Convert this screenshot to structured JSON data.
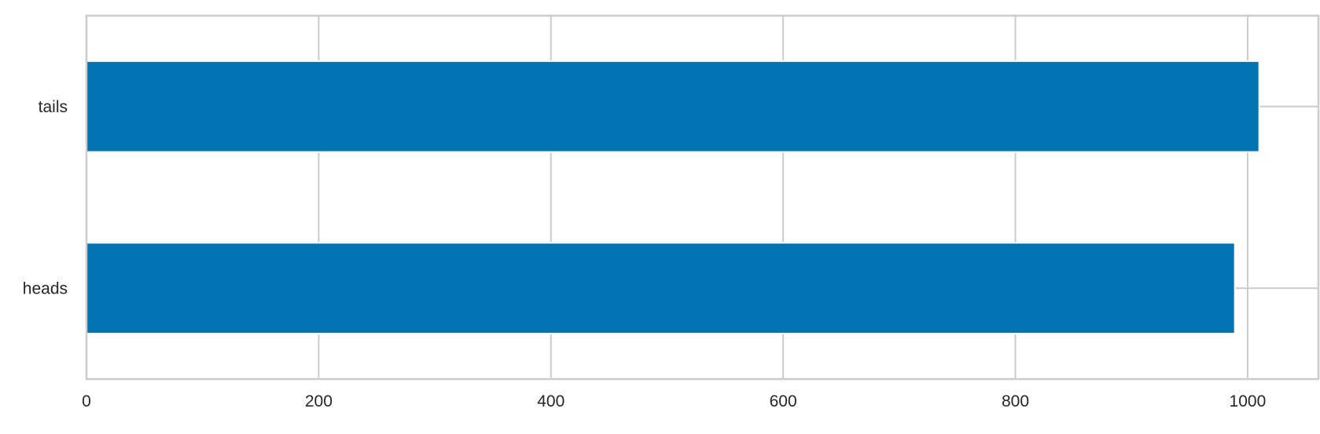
{
  "chart_data": {
    "type": "bar",
    "orientation": "horizontal",
    "categories": [
      "heads",
      "tails"
    ],
    "values": [
      989,
      1010
    ],
    "title": "",
    "xlabel": "",
    "ylabel": "",
    "xlim": [
      0,
      1061
    ],
    "xticks": [
      0,
      200,
      400,
      600,
      800,
      1000
    ],
    "grid": true,
    "legend": "none",
    "colors": {
      "bar": "#0173b2",
      "grid": "#cccccc",
      "spine": "#cccccc",
      "background": "#ffffff"
    }
  }
}
